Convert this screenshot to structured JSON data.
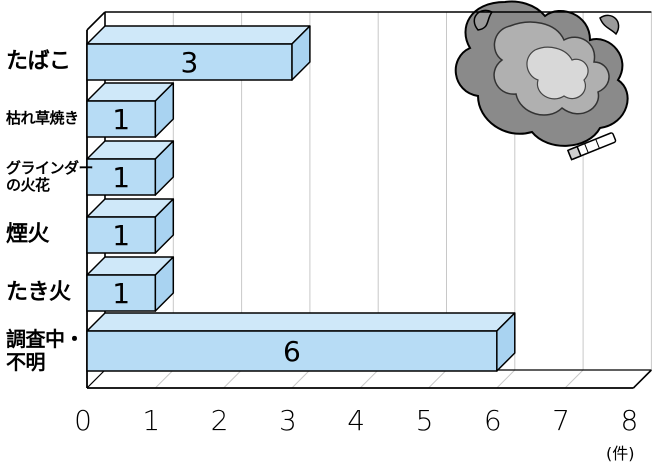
{
  "chart_data": {
    "type": "bar",
    "orientation": "horizontal",
    "categories": [
      "たばこ",
      "枯れ草焼き",
      "グラインダー\nの火花",
      "煙火",
      "たき火",
      "調査中・\n不明"
    ],
    "values": [
      3,
      1,
      1,
      1,
      1,
      6
    ],
    "xlim": [
      0,
      8
    ],
    "x_ticks": [
      "0",
      "1",
      "2",
      "3",
      "4",
      "5",
      "6",
      "7",
      "8"
    ],
    "unit": "(件)",
    "grid": true,
    "style": "3d-bar",
    "bar_color": "#b7dcf5",
    "illustration": "fire-smoke-cigarette"
  }
}
